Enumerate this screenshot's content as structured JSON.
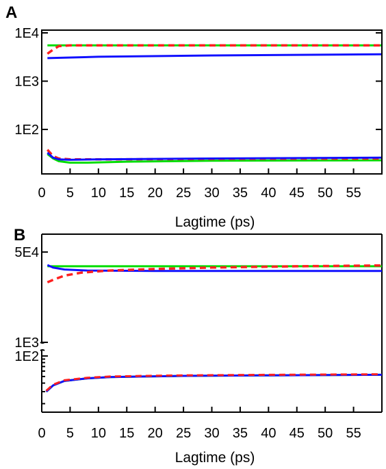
{
  "chart_data": [
    {
      "panel": "A",
      "type": "line",
      "xlabel": "Lagtime (ps)",
      "ylabel": "",
      "title": "",
      "xlim": [
        0,
        60
      ],
      "xticks": [
        "0",
        "5",
        "10",
        "15",
        "20",
        "25",
        "30",
        "35",
        "40",
        "45",
        "50",
        "55"
      ],
      "yscale": "log",
      "ylim": [
        12,
        10000
      ],
      "yticks": [
        {
          "value": 10000,
          "label": "1E4"
        },
        {
          "value": 1000,
          "label": "1E3"
        },
        {
          "value": 100,
          "label": "1E2"
        }
      ],
      "series": [
        {
          "color": "#00dd00",
          "style": "solid",
          "x": [
            1,
            60
          ],
          "y": [
            5500,
            5500
          ]
        },
        {
          "color": "#ff2020",
          "style": "dashed",
          "x": [
            1,
            2,
            3,
            5,
            60
          ],
          "y": [
            3700,
            4500,
            5300,
            5500,
            5500
          ]
        },
        {
          "color": "#1010ff",
          "style": "solid",
          "x": [
            1,
            10,
            30,
            60
          ],
          "y": [
            3000,
            3200,
            3400,
            3600
          ]
        },
        {
          "color": "#00dd00",
          "style": "solid",
          "x": [
            1,
            2,
            3,
            5,
            8,
            15,
            30,
            60
          ],
          "y": [
            31,
            25,
            22,
            20.5,
            20.5,
            21.5,
            22.5,
            23
          ]
        },
        {
          "color": "#ff2020",
          "style": "dashed",
          "x": [
            1,
            2,
            3,
            5,
            10,
            30,
            60
          ],
          "y": [
            38,
            28,
            25,
            24,
            24,
            24.5,
            25
          ]
        },
        {
          "color": "#1010ff",
          "style": "solid",
          "x": [
            1,
            2,
            3,
            5,
            10,
            30,
            60
          ],
          "y": [
            33,
            26,
            24,
            23.5,
            24,
            25,
            26
          ]
        }
      ]
    },
    {
      "panel": "B",
      "type": "line",
      "xlabel": "Lagtime (ps)",
      "ylabel": "",
      "title": "",
      "xlim": [
        0,
        60
      ],
      "xticks": [
        "0",
        "5",
        "10",
        "15",
        "20",
        "25",
        "30",
        "35",
        "40",
        "45",
        "50",
        "55"
      ],
      "yscale": "log",
      "broken_axis": true,
      "upper_ylim": [
        1000,
        60000
      ],
      "lower_ylim": [
        15,
        120
      ],
      "yticks": [
        {
          "value": 50000,
          "label": "5E4"
        },
        {
          "value": 1000,
          "label": "1E3"
        },
        {
          "value": 100,
          "label": "1E2"
        }
      ],
      "series": [
        {
          "color": "#00dd00",
          "style": "solid",
          "segment": "upper",
          "x": [
            1,
            60
          ],
          "y": [
            27000,
            27000
          ]
        },
        {
          "color": "#1010ff",
          "style": "solid",
          "segment": "upper",
          "x": [
            1,
            2,
            4,
            8,
            20,
            60
          ],
          "y": [
            28500,
            25500,
            23500,
            22500,
            22000,
            22000
          ]
        },
        {
          "color": "#ff2020",
          "style": "dashed",
          "segment": "upper",
          "x": [
            1,
            2,
            4,
            7,
            12,
            20,
            30,
            45,
            60
          ],
          "y": [
            13500,
            15000,
            18000,
            20500,
            22500,
            24000,
            25500,
            27000,
            28000
          ]
        },
        {
          "color": "#00dd00",
          "style": "solid",
          "segment": "lower",
          "x": [
            0.8,
            2,
            4,
            8,
            12,
            18,
            25,
            40,
            60
          ],
          "y": [
            30,
            37,
            43,
            47,
            49,
            50,
            51,
            52,
            53
          ]
        },
        {
          "color": "#1010ff",
          "style": "solid",
          "segment": "lower",
          "x": [
            0.8,
            2,
            4,
            8,
            12,
            18,
            25,
            40,
            60
          ],
          "y": [
            30,
            37,
            43,
            47,
            49,
            50,
            51,
            52,
            53
          ]
        },
        {
          "color": "#ff2020",
          "style": "dashed",
          "segment": "lower",
          "x": [
            0.8,
            2,
            4,
            8,
            12,
            18,
            25,
            40,
            60
          ],
          "y": [
            31,
            38,
            44,
            48,
            50,
            51,
            52,
            53,
            54
          ]
        }
      ]
    }
  ]
}
